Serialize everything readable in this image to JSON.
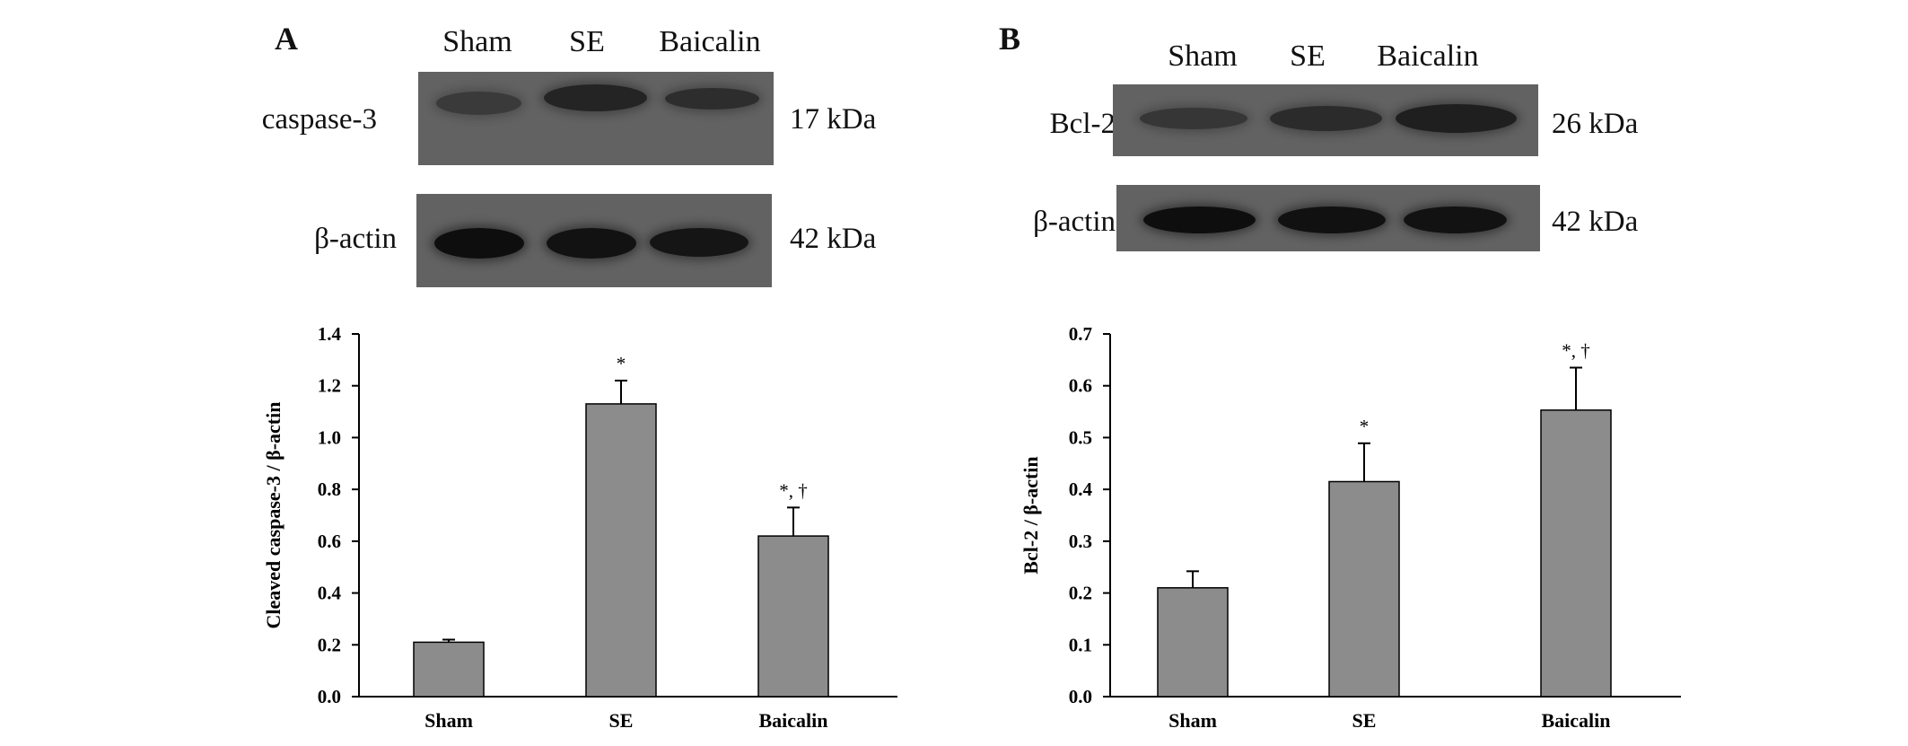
{
  "panels": [
    {
      "id": "A",
      "label": "A",
      "blot": {
        "lanes": [
          "Sham",
          "SE",
          "Baicalin"
        ],
        "rows": [
          {
            "protein": "caspase-3",
            "kda": "17 kDa",
            "band_intensity": [
              0.45,
              0.7,
              0.6
            ]
          },
          {
            "protein": "β-actin",
            "kda": "42 kDa",
            "band_intensity": [
              0.95,
              0.9,
              0.88
            ]
          }
        ]
      }
    },
    {
      "id": "B",
      "label": "B",
      "blot": {
        "lanes": [
          "Sham",
          "SE",
          "Baicalin"
        ],
        "rows": [
          {
            "protein": "Bcl-2",
            "kda": "26 kDa",
            "band_intensity": [
              0.5,
              0.62,
              0.75
            ]
          },
          {
            "protein": "β-actin",
            "kda": "42 kDa",
            "band_intensity": [
              0.95,
              0.92,
              0.9
            ]
          }
        ]
      }
    }
  ],
  "chart_data": [
    {
      "type": "bar",
      "panel": "A",
      "categories": [
        "Sham",
        "SE",
        "Baicalin"
      ],
      "values": [
        0.21,
        1.13,
        0.62
      ],
      "error": [
        0.01,
        0.09,
        0.11
      ],
      "annotations": [
        "",
        "*",
        "*, †"
      ],
      "ylabel": "Cleaved caspase-3 / β-actin",
      "xlabel": "",
      "ylim": [
        0,
        1.4
      ],
      "yticks": [
        "0.0",
        "0.2",
        "0.4",
        "0.6",
        "0.8",
        "1.0",
        "1.2",
        "1.4"
      ],
      "bar_color": "#8c8c8c",
      "grid": false
    },
    {
      "type": "bar",
      "panel": "B",
      "categories": [
        "Sham",
        "SE",
        "Baicalin"
      ],
      "values": [
        0.21,
        0.415,
        0.553
      ],
      "error": [
        0.032,
        0.074,
        0.082
      ],
      "annotations": [
        "",
        "*",
        "*, †"
      ],
      "ylabel": "Bcl-2 / β-actin",
      "xlabel": "",
      "ylim": [
        0,
        0.7
      ],
      "yticks": [
        "0.0",
        "0.1",
        "0.2",
        "0.3",
        "0.4",
        "0.5",
        "0.6",
        "0.7"
      ],
      "bar_color": "#8c8c8c",
      "grid": false
    }
  ]
}
